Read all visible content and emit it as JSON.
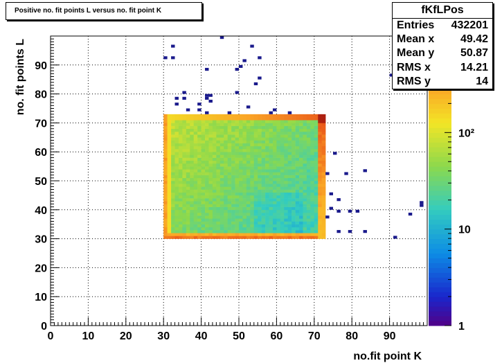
{
  "title": "Positive no. fit points L versus no. fit point K",
  "stats": {
    "name": "fKfLPos",
    "rows": [
      {
        "label": "Entries",
        "value": "432201"
      },
      {
        "label": "Mean x",
        "value": "49.42"
      },
      {
        "label": "Mean y",
        "value": "50.87"
      },
      {
        "label": "RMS x",
        "value": "14.21"
      },
      {
        "label": "RMS y",
        "value": "14"
      }
    ]
  },
  "chart_data": {
    "type": "heatmap",
    "title": "Positive no. fit points L versus no. fit point K",
    "xlabel": "no.fit point K",
    "ylabel": "no. fit points  L",
    "xlim": [
      0,
      100
    ],
    "ylim": [
      0,
      100
    ],
    "x_ticks": [
      "0",
      "10",
      "20",
      "30",
      "40",
      "50",
      "60",
      "70",
      "80",
      "90"
    ],
    "y_ticks": [
      "0",
      "10",
      "20",
      "30",
      "40",
      "50",
      "60",
      "70",
      "80",
      "90"
    ],
    "grid": true,
    "z_scale": "log",
    "z_range": [
      1,
      1000
    ],
    "z_ticks": [
      "1",
      "10",
      "10²"
    ],
    "dense_region": {
      "x": [
        30,
        73
      ],
      "y": [
        30,
        73
      ]
    },
    "high_edges": [
      "y=30 row",
      "x=30 column",
      "x=72 column",
      "y=72 row",
      "corner (72,72)"
    ],
    "sparse_points": [
      [
        45,
        99
      ],
      [
        30,
        92
      ],
      [
        32,
        92
      ],
      [
        32,
        96
      ],
      [
        53,
        96
      ],
      [
        55,
        92
      ],
      [
        51,
        91
      ],
      [
        41,
        88
      ],
      [
        49,
        88
      ],
      [
        50,
        89
      ],
      [
        90,
        86
      ],
      [
        55,
        85
      ],
      [
        54,
        83
      ],
      [
        35,
        80
      ],
      [
        49,
        80
      ],
      [
        33,
        78
      ],
      [
        35,
        78
      ],
      [
        41,
        79
      ],
      [
        42,
        79
      ],
      [
        42,
        77
      ],
      [
        33,
        76
      ],
      [
        39,
        76
      ],
      [
        41,
        78
      ],
      [
        36,
        74
      ],
      [
        39,
        74
      ],
      [
        41,
        73
      ],
      [
        47,
        73
      ],
      [
        52,
        75
      ],
      [
        58,
        73
      ],
      [
        59,
        74
      ],
      [
        63,
        73
      ],
      [
        75,
        59
      ],
      [
        73,
        52
      ],
      [
        78,
        52
      ],
      [
        83,
        53
      ],
      [
        74,
        45
      ],
      [
        76,
        43
      ],
      [
        74,
        40
      ],
      [
        76,
        39
      ],
      [
        79,
        39
      ],
      [
        81,
        39
      ],
      [
        73,
        37
      ],
      [
        76,
        32
      ],
      [
        79,
        32
      ],
      [
        83,
        32
      ],
      [
        91,
        30
      ],
      [
        95,
        38
      ],
      [
        98,
        42
      ],
      [
        98,
        41
      ]
    ]
  }
}
